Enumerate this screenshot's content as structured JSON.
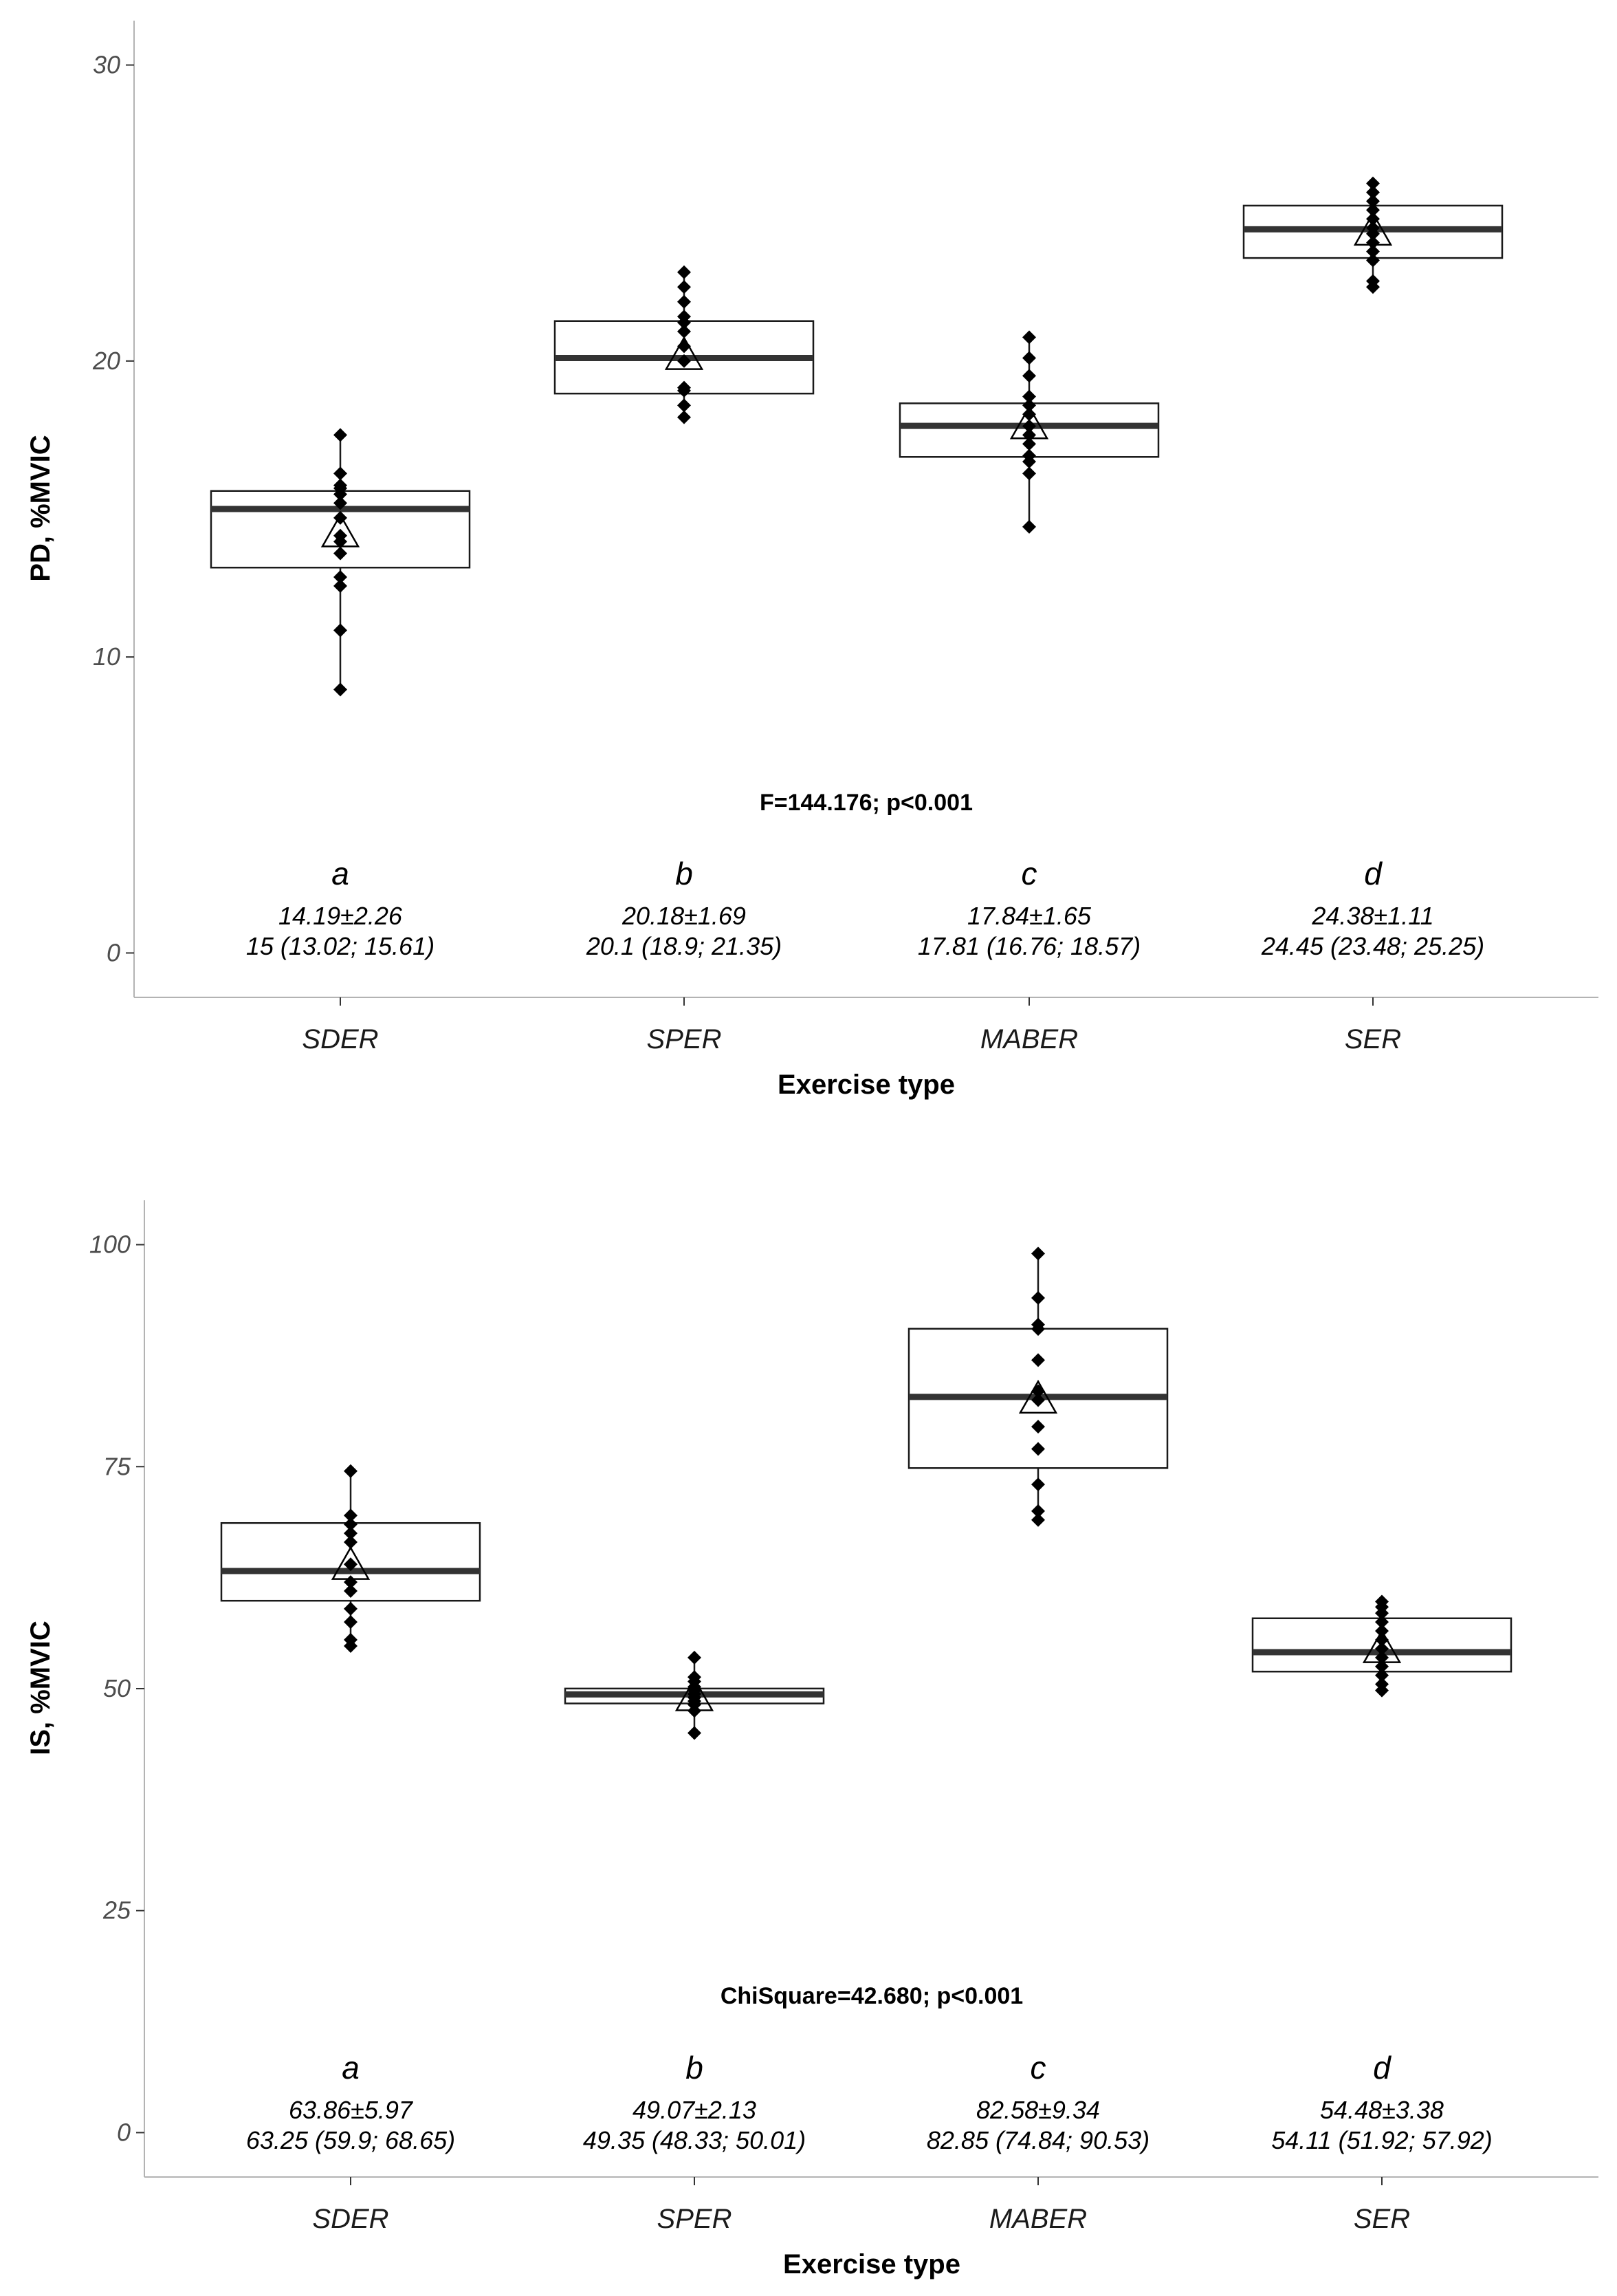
{
  "chart_data": [
    {
      "type": "boxplot",
      "ylabel": "PD, %MVIC",
      "xlabel": "Exercise type",
      "ylim": [
        -1.5,
        31.5
      ],
      "yticks": [
        0,
        10,
        20,
        30
      ],
      "categories": [
        "SDER",
        "SPER",
        "MABER",
        "SER"
      ],
      "statistic": "F=144.176; p<0.001",
      "groups": [
        {
          "name": "SDER",
          "letter": "a",
          "mean_sd": "14.19±2.26",
          "median_iqr": "15 (13.02; 15.61)",
          "mean": 14.19,
          "median": 15,
          "q1": 13.02,
          "q3": 15.61,
          "points": [
            8.9,
            10.9,
            12.4,
            12.7,
            13.5,
            13.9,
            14.1,
            14.7,
            15.2,
            15.5,
            15.7,
            15.8,
            16.2,
            17.5
          ]
        },
        {
          "name": "SPER",
          "letter": "b",
          "mean_sd": "20.18±1.69",
          "median_iqr": "20.1 (18.9; 21.35)",
          "mean": 20.18,
          "median": 20.1,
          "q1": 18.9,
          "q3": 21.35,
          "points": [
            18.1,
            18.5,
            19.0,
            19.1,
            20.0,
            20.5,
            21.0,
            21.3,
            21.5,
            22.0,
            22.5,
            23.0
          ]
        },
        {
          "name": "MABER",
          "letter": "c",
          "mean_sd": "17.84±1.65",
          "median_iqr": "17.81 (16.76; 18.57)",
          "mean": 17.84,
          "median": 17.81,
          "q1": 16.76,
          "q3": 18.57,
          "points": [
            14.4,
            16.2,
            16.6,
            16.8,
            17.2,
            17.5,
            17.8,
            18.2,
            18.5,
            18.8,
            19.5,
            20.1,
            20.8
          ]
        },
        {
          "name": "SER",
          "letter": "d",
          "mean_sd": "24.38±1.11",
          "median_iqr": "24.45 (23.48; 25.25)",
          "mean": 24.38,
          "median": 24.45,
          "q1": 23.48,
          "q3": 25.25,
          "points": [
            22.5,
            22.7,
            23.4,
            23.7,
            24.0,
            24.3,
            24.5,
            24.8,
            25.1,
            25.4,
            25.7,
            26.0
          ]
        }
      ]
    },
    {
      "type": "boxplot",
      "ylabel": "IS, %MVIC",
      "xlabel": "Exercise type",
      "ylim": [
        -5,
        105
      ],
      "yticks": [
        0,
        25,
        50,
        75,
        100
      ],
      "categories": [
        "SDER",
        "SPER",
        "MABER",
        "SER"
      ],
      "statistic": "ChiSquare=42.680; p<0.001",
      "groups": [
        {
          "name": "SDER",
          "letter": "a",
          "mean_sd": "63.86±5.97",
          "median_iqr": "63.25 (59.9; 68.65)",
          "mean": 63.86,
          "median": 63.25,
          "q1": 59.9,
          "q3": 68.65,
          "points": [
            54.8,
            55.5,
            57.5,
            59.0,
            61.0,
            62.0,
            64.0,
            66.5,
            67.5,
            68.5,
            69.5,
            74.5
          ]
        },
        {
          "name": "SPER",
          "letter": "b",
          "mean_sd": "49.07±2.13",
          "median_iqr": "49.35 (48.33; 50.01)",
          "mean": 49.07,
          "median": 49.35,
          "q1": 48.33,
          "q3": 50.01,
          "points": [
            45.0,
            47.5,
            48.2,
            48.6,
            49.0,
            49.4,
            49.8,
            50.2,
            50.8,
            51.3,
            53.5
          ]
        },
        {
          "name": "MABER",
          "letter": "c",
          "mean_sd": "82.58±9.34",
          "median_iqr": "82.85 (74.84; 90.53)",
          "mean": 82.58,
          "median": 82.85,
          "q1": 74.84,
          "q3": 90.53,
          "points": [
            69.0,
            70.0,
            73.0,
            77.0,
            79.5,
            82.5,
            83.5,
            87.0,
            90.5,
            91.0,
            94.0,
            99.0
          ]
        },
        {
          "name": "SER",
          "letter": "d",
          "mean_sd": "54.48±3.38",
          "median_iqr": "54.11 (51.92; 57.92)",
          "mean": 54.48,
          "median": 54.11,
          "q1": 51.92,
          "q3": 57.92,
          "points": [
            49.8,
            50.5,
            51.5,
            52.5,
            53.5,
            54.5,
            55.5,
            56.5,
            57.5,
            58.5,
            59.2,
            59.8
          ]
        }
      ]
    }
  ]
}
